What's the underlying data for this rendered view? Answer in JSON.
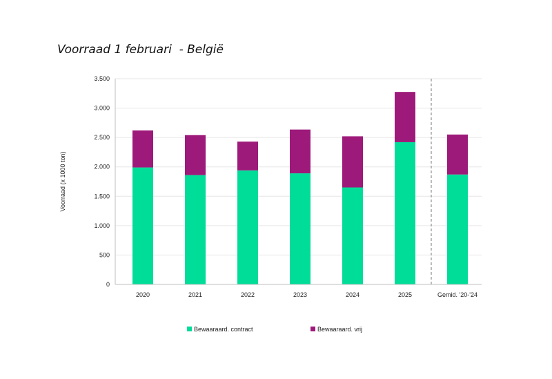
{
  "chart_data": {
    "type": "bar",
    "stacked": true,
    "title": "Voorraad 1 februari  - België",
    "xlabel": "",
    "ylabel": "Voorraad (x 1000 ton)",
    "categories": [
      "2020",
      "2021",
      "2022",
      "2023",
      "2024",
      "2025",
      "Gemid. '20-'24"
    ],
    "series": [
      {
        "name": "Bewaaraard. contract",
        "color": "#00dd99",
        "values": [
          1990,
          1860,
          1940,
          1890,
          1650,
          2420,
          1870
        ]
      },
      {
        "name": "Bewaaraard. vrij",
        "color": "#9e1a7a",
        "values": [
          630,
          680,
          490,
          745,
          870,
          855,
          680
        ]
      }
    ],
    "ylim": [
      0,
      3500
    ],
    "yticks": [
      0,
      500,
      1000,
      1500,
      2000,
      2500,
      3000,
      3500
    ],
    "ytick_labels": [
      "0",
      "500",
      "1.000",
      "1.500",
      "2.000",
      "2.500",
      "3.000",
      "3.500"
    ],
    "separator_before_category": "Gemid. '20-'24",
    "grid": true,
    "legend_position": "bottom"
  }
}
